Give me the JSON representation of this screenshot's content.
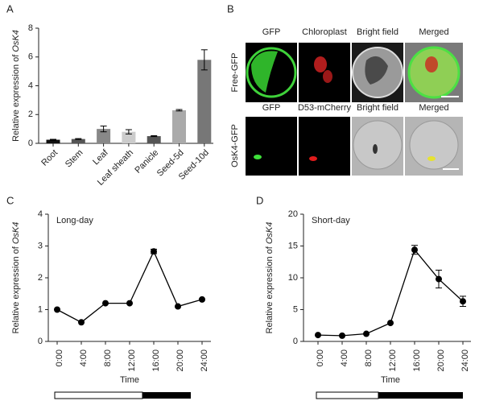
{
  "panel_labels": [
    "A",
    "B",
    "C",
    "D"
  ],
  "chart_data": [
    {
      "type": "bar",
      "ylabel": "Relative expression of ",
      "ylabel_gene": "OsK4",
      "categories": [
        "Root",
        "Stem",
        "Leaf",
        "Leaf sheath",
        "Panicle",
        "Seed-5d",
        "Seed-10d"
      ],
      "values": [
        0.25,
        0.3,
        1.0,
        0.8,
        0.5,
        2.3,
        5.8
      ],
      "errors": [
        0.03,
        0.03,
        0.2,
        0.15,
        0.03,
        0.05,
        0.7
      ],
      "colors": [
        "#111111",
        "#555555",
        "#888888",
        "#cccccc",
        "#555555",
        "#aaaaaa",
        "#777777"
      ],
      "ylim": [
        0,
        8
      ],
      "yticks": [
        0,
        2,
        4,
        6,
        8
      ]
    },
    {
      "type": "line",
      "annotation": "Long-day",
      "xlabel": "Time",
      "ylabel": "Relative expression of ",
      "ylabel_gene": "OsK4",
      "categories": [
        "0:00",
        "4:00",
        "8:00",
        "12:00",
        "16:00",
        "20:00",
        "24:00"
      ],
      "values": [
        1.0,
        0.6,
        1.2,
        1.2,
        2.83,
        1.1,
        1.32
      ],
      "errors": [
        null,
        null,
        null,
        null,
        0.07,
        null,
        null
      ],
      "color": "#000000",
      "ylim": [
        0,
        4
      ],
      "yticks": [
        0,
        1,
        2,
        3,
        4
      ]
    },
    {
      "type": "line",
      "annotation": "Short-day",
      "xlabel": "Time",
      "ylabel": "Relative expression of ",
      "ylabel_gene": "OsK4",
      "categories": [
        "0:00",
        "4:00",
        "8:00",
        "12:00",
        "16:00",
        "20:00",
        "24:00"
      ],
      "values": [
        1.0,
        0.9,
        1.2,
        2.9,
        14.4,
        9.8,
        6.3
      ],
      "errors": [
        null,
        null,
        null,
        null,
        0.7,
        1.4,
        0.8
      ],
      "color": "#000000",
      "ylim": [
        0,
        20
      ],
      "yticks": [
        0,
        5,
        10,
        15,
        20
      ]
    }
  ],
  "panel_b": {
    "rows": [
      {
        "label": "Free-GFP",
        "columns": [
          "GFP",
          "Chloroplast",
          "Bright field",
          "Merged"
        ]
      },
      {
        "label": "OsK4-GFP",
        "columns": [
          "GFP",
          "D53-mCherry",
          "Bright field",
          "Merged"
        ]
      }
    ]
  }
}
